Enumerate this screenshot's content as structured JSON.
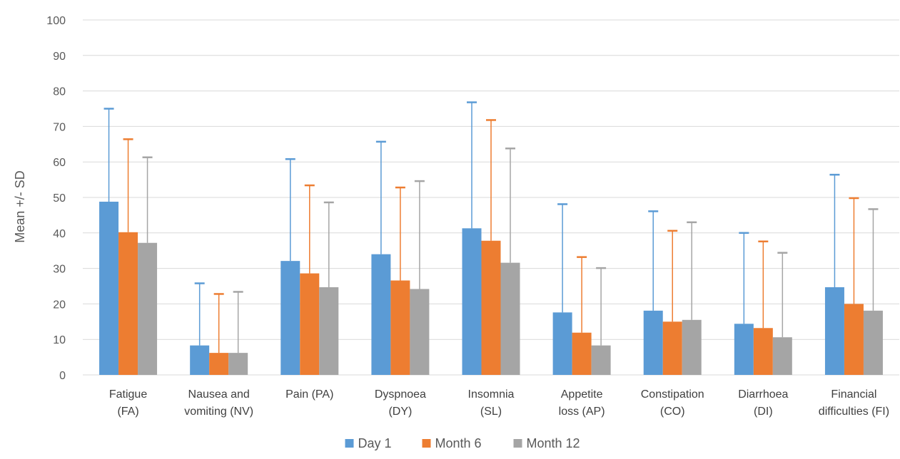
{
  "chart_data": {
    "type": "bar",
    "ylabel": "Mean +/- SD",
    "xlabel": "",
    "ylim": [
      0,
      100
    ],
    "yticks": [
      0,
      10,
      20,
      30,
      40,
      50,
      60,
      70,
      80,
      90,
      100
    ],
    "grid": true,
    "legend_position": "bottom",
    "categories": [
      [
        "Fatigue",
        "(FA)"
      ],
      [
        "Nausea and",
        "vomiting (NV)"
      ],
      [
        "Pain (PA)"
      ],
      [
        "Dyspnoea",
        "(DY)"
      ],
      [
        "Insomnia",
        "(SL)"
      ],
      [
        "Appetite",
        "loss (AP)"
      ],
      [
        "Constipation",
        "(CO)"
      ],
      [
        "Diarrhoea",
        "(DI)"
      ],
      [
        "Financial",
        "difficulties (FI)"
      ]
    ],
    "series": [
      {
        "name": "Day 1",
        "color": "#5b9bd5",
        "values": [
          48.8,
          8.3,
          32.1,
          34.0,
          41.3,
          17.6,
          18.1,
          14.4,
          24.7
        ],
        "upper": [
          75.0,
          25.8,
          60.8,
          65.7,
          76.8,
          48.1,
          46.1,
          40.0,
          56.4
        ]
      },
      {
        "name": "Month 6",
        "color": "#ed7d31",
        "values": [
          40.2,
          6.2,
          28.6,
          26.6,
          37.8,
          11.9,
          15.0,
          13.2,
          20.0
        ],
        "upper": [
          66.4,
          22.8,
          53.4,
          52.8,
          71.8,
          33.2,
          40.6,
          37.6,
          49.8
        ]
      },
      {
        "name": "Month 12",
        "color": "#a5a5a5",
        "values": [
          37.2,
          6.2,
          24.7,
          24.2,
          31.6,
          8.3,
          15.5,
          10.6,
          18.1
        ],
        "upper": [
          61.3,
          23.4,
          48.6,
          54.6,
          63.8,
          30.1,
          43.0,
          34.4,
          46.7
        ]
      }
    ]
  }
}
